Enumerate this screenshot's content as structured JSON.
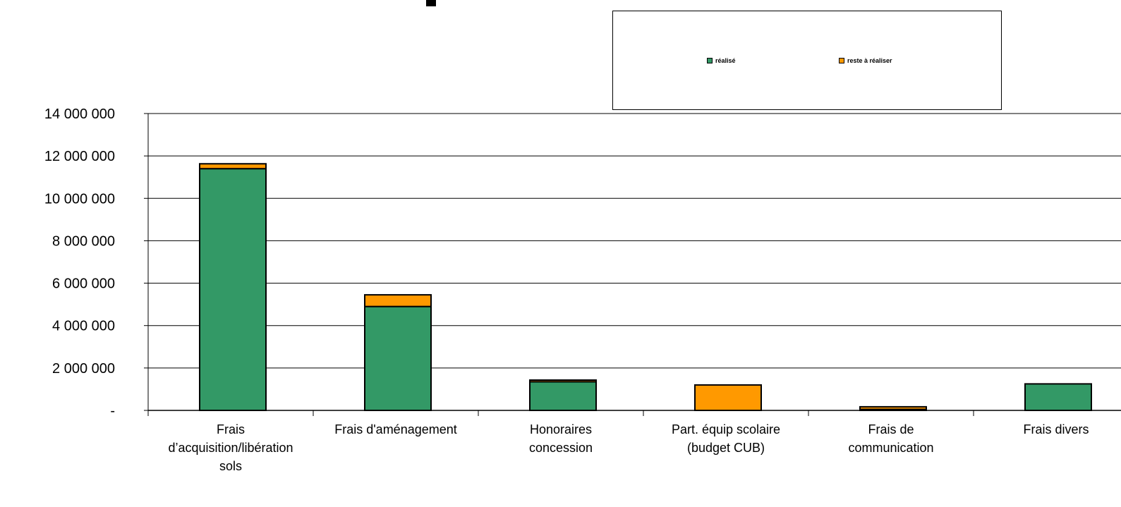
{
  "chart_data": {
    "type": "bar",
    "stacked": true,
    "title": "",
    "xlabel": "",
    "ylabel": "",
    "ylim": [
      0,
      14000000
    ],
    "yticks": [
      0,
      2000000,
      4000000,
      6000000,
      8000000,
      10000000,
      12000000,
      14000000
    ],
    "ytick_labels": [
      "-",
      "2 000 000",
      "4 000 000",
      "6 000 000",
      "8 000 000",
      "10 000 000",
      "12 000 000",
      "14 000 000"
    ],
    "categories": [
      [
        "Frais",
        "d’acquisition/libération",
        "sols"
      ],
      [
        "Frais d'aménagement"
      ],
      [
        "Honoraires",
        "concession"
      ],
      [
        "Part. équip scolaire",
        "(budget CUB)"
      ],
      [
        "Frais de",
        "communication"
      ],
      [
        "Frais divers"
      ]
    ],
    "series": [
      {
        "name": "réalisé",
        "color": "#339966",
        "values": [
          11400000,
          4900000,
          1350000,
          0,
          50000,
          1250000
        ]
      },
      {
        "name": "reste à réaliser",
        "color": "#FF9900",
        "values": [
          230000,
          550000,
          80000,
          1200000,
          120000,
          0
        ]
      }
    ],
    "grid": true,
    "legend_position": "top-right"
  }
}
